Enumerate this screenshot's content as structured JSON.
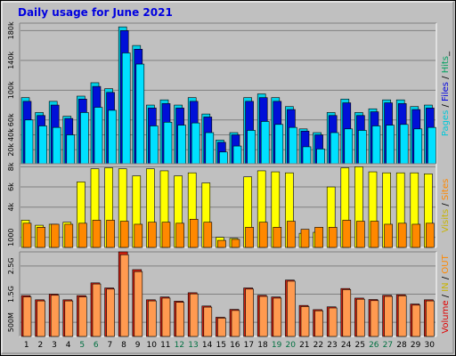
{
  "chart_data": {
    "type": "bar",
    "title": "Daily usage for June 2021",
    "categories": [
      "1",
      "2",
      "3",
      "4",
      "5",
      "6",
      "7",
      "8",
      "9",
      "10",
      "11",
      "12",
      "13",
      "14",
      "15",
      "16",
      "17",
      "18",
      "19",
      "20",
      "21",
      "22",
      "23",
      "24",
      "25",
      "26",
      "27",
      "28",
      "29",
      "30"
    ],
    "weekend_days": [
      "5",
      "6",
      "12",
      "13",
      "19",
      "20",
      "26",
      "27"
    ],
    "colors": {
      "hits": "#00d0e8",
      "files": "#0010d8",
      "pages": "#00e0ff",
      "visits": "#ffff00",
      "sites": "#ff8800",
      "kbytes_in": "#d02010",
      "kbytes_out": "#ff9a50",
      "weekday_label": "#000000",
      "weekend_label": "#007040"
    },
    "panels": [
      {
        "id": "requests",
        "ylim": [
          0,
          190000
        ],
        "y_ticks": [
          {
            "v": 20000,
            "label": "20k"
          },
          {
            "v": 40000,
            "label": "40k"
          },
          {
            "v": 60000,
            "label": "60k"
          },
          {
            "v": 100000,
            "label": "100k"
          },
          {
            "v": 140000,
            "label": "140k"
          },
          {
            "v": 180000,
            "label": "180k"
          }
        ],
        "side_label": [
          {
            "text": "Pages",
            "color": "#00c8d8"
          },
          {
            "text": " / ",
            "color": "#000000"
          },
          {
            "text": "Files",
            "color": "#0000e0"
          },
          {
            "text": " / ",
            "color": "#000000"
          },
          {
            "text": "Hits",
            "color": "#00a060"
          },
          {
            "text": "_",
            "color": "#000000"
          }
        ],
        "series": [
          {
            "name": "Hits",
            "values": [
              90000,
              70000,
              85000,
              65000,
              92000,
              110000,
              102000,
              185000,
              160000,
              80000,
              87000,
              80000,
              90000,
              68000,
              33000,
              43000,
              90000,
              95000,
              90000,
              78000,
              48000,
              43000,
              70000,
              88000,
              70000,
              75000,
              87000,
              87000,
              78000,
              80000
            ]
          },
          {
            "name": "Files",
            "values": [
              85000,
              66000,
              80000,
              62000,
              88000,
              105000,
              97000,
              180000,
              155000,
              76000,
              82000,
              76000,
              85000,
              64000,
              30000,
              40000,
              85000,
              90000,
              85000,
              74000,
              45000,
              40000,
              66000,
              83000,
              66000,
              71000,
              83000,
              82000,
              74000,
              76000
            ]
          },
          {
            "name": "Pages",
            "values": [
              60000,
              52000,
              50000,
              40000,
              70000,
              77000,
              73000,
              150000,
              135000,
              52000,
              57000,
              53000,
              56000,
              43000,
              17000,
              25000,
              46000,
              58000,
              54000,
              50000,
              24000,
              21000,
              43000,
              48000,
              46000,
              52000,
              53000,
              54000,
              48000,
              50000
            ]
          }
        ]
      },
      {
        "id": "visits",
        "ylim": [
          0,
          8300
        ],
        "y_ticks": [
          {
            "v": 1000,
            "label": "1000"
          },
          {
            "v": 4000,
            "label": "4k"
          },
          {
            "v": 6000,
            "label": "6k"
          },
          {
            "v": 8000,
            "label": "8k"
          }
        ],
        "side_label": [
          {
            "text": "Visits",
            "color": "#c8b400"
          },
          {
            "text": " / ",
            "color": "#000000"
          },
          {
            "text": "Sites",
            "color": "#ff8800"
          }
        ],
        "series": [
          {
            "name": "Visits",
            "values": [
              2700,
              2200,
              2300,
              2500,
              6500,
              7800,
              7900,
              7800,
              7100,
              7800,
              7600,
              7100,
              7400,
              6400,
              1000,
              900,
              7000,
              7600,
              7500,
              7400,
              1400,
              1500,
              6000,
              7900,
              8000,
              7500,
              7400,
              7400,
              7400,
              7300
            ]
          },
          {
            "name": "Sites",
            "values": [
              2400,
              2000,
              2300,
              2300,
              2400,
              2700,
              2700,
              2600,
              2300,
              2500,
              2500,
              2400,
              2800,
              2500,
              700,
              800,
              2000,
              2500,
              2000,
              2600,
              1800,
              2000,
              2000,
              2700,
              2600,
              2600,
              2300,
              2400,
              2300,
              2400
            ]
          }
        ]
      },
      {
        "id": "volume",
        "ylim": [
          0,
          3000000
        ],
        "y_ticks": [
          {
            "v": 500000,
            "label": "500M"
          },
          {
            "v": 1500000,
            "label": "1.5G"
          },
          {
            "v": 2500000,
            "label": "2.5G"
          }
        ],
        "side_label": [
          {
            "text": "Volume",
            "color": "#e00000"
          },
          {
            "text": " / ",
            "color": "#000000"
          },
          {
            "text": "IN",
            "color": "#c8b400"
          },
          {
            "text": " / ",
            "color": "#000000"
          },
          {
            "text": "OUT",
            "color": "#ff8800"
          }
        ],
        "series": [
          {
            "name": "Volume",
            "values": [
              1450000,
              1300000,
              1500000,
              1300000,
              1450000,
              1900000,
              1720000,
              3000000,
              2370000,
              1300000,
              1400000,
              1250000,
              1550000,
              1080000,
              680000,
              960000,
              1720000,
              1460000,
              1400000,
              2000000,
              1100000,
              950000,
              1050000,
              1700000,
              1360000,
              1310000,
              1460000,
              1480000,
              1150000,
              1300000
            ]
          },
          {
            "name": "OUT",
            "values": [
              1400000,
              1260000,
              1460000,
              1260000,
              1400000,
              1860000,
              1680000,
              2900000,
              2300000,
              1260000,
              1360000,
              1210000,
              1510000,
              1040000,
              650000,
              920000,
              1680000,
              1420000,
              1360000,
              1960000,
              1060000,
              910000,
              1010000,
              1660000,
              1320000,
              1270000,
              1420000,
              1440000,
              1110000,
              1260000
            ]
          }
        ]
      }
    ]
  }
}
